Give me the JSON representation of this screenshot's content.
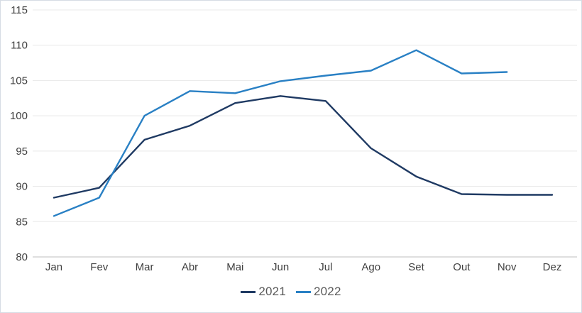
{
  "chart_data": {
    "type": "line",
    "title": "",
    "xlabel": "",
    "ylabel": "",
    "categories": [
      "Jan",
      "Fev",
      "Mar",
      "Abr",
      "Mai",
      "Jun",
      "Jul",
      "Ago",
      "Set",
      "Out",
      "Nov",
      "Dez"
    ],
    "series": [
      {
        "name": "2021",
        "color": "#1f3a63",
        "values": [
          88.4,
          89.8,
          96.6,
          98.6,
          101.8,
          102.8,
          102.1,
          95.4,
          91.4,
          88.9,
          88.8,
          88.8
        ]
      },
      {
        "name": "2022",
        "color": "#2980c4",
        "values": [
          85.8,
          88.4,
          100.0,
          103.5,
          103.2,
          104.9,
          105.7,
          106.4,
          109.3,
          106.0,
          106.2,
          null
        ]
      }
    ],
    "ylim": [
      80,
      115
    ],
    "ytick_step": 5,
    "ytick_labels": [
      "80",
      "85",
      "90",
      "95",
      "100",
      "105",
      "110",
      "115"
    ],
    "grid": true,
    "legend_position": "bottom"
  },
  "style": {
    "gridline_color": "#e8e8e8",
    "axis_line_color": "#bfbfbf",
    "tick_label_color": "#404040",
    "legend_text_color": "#595959",
    "background": "#ffffff"
  }
}
